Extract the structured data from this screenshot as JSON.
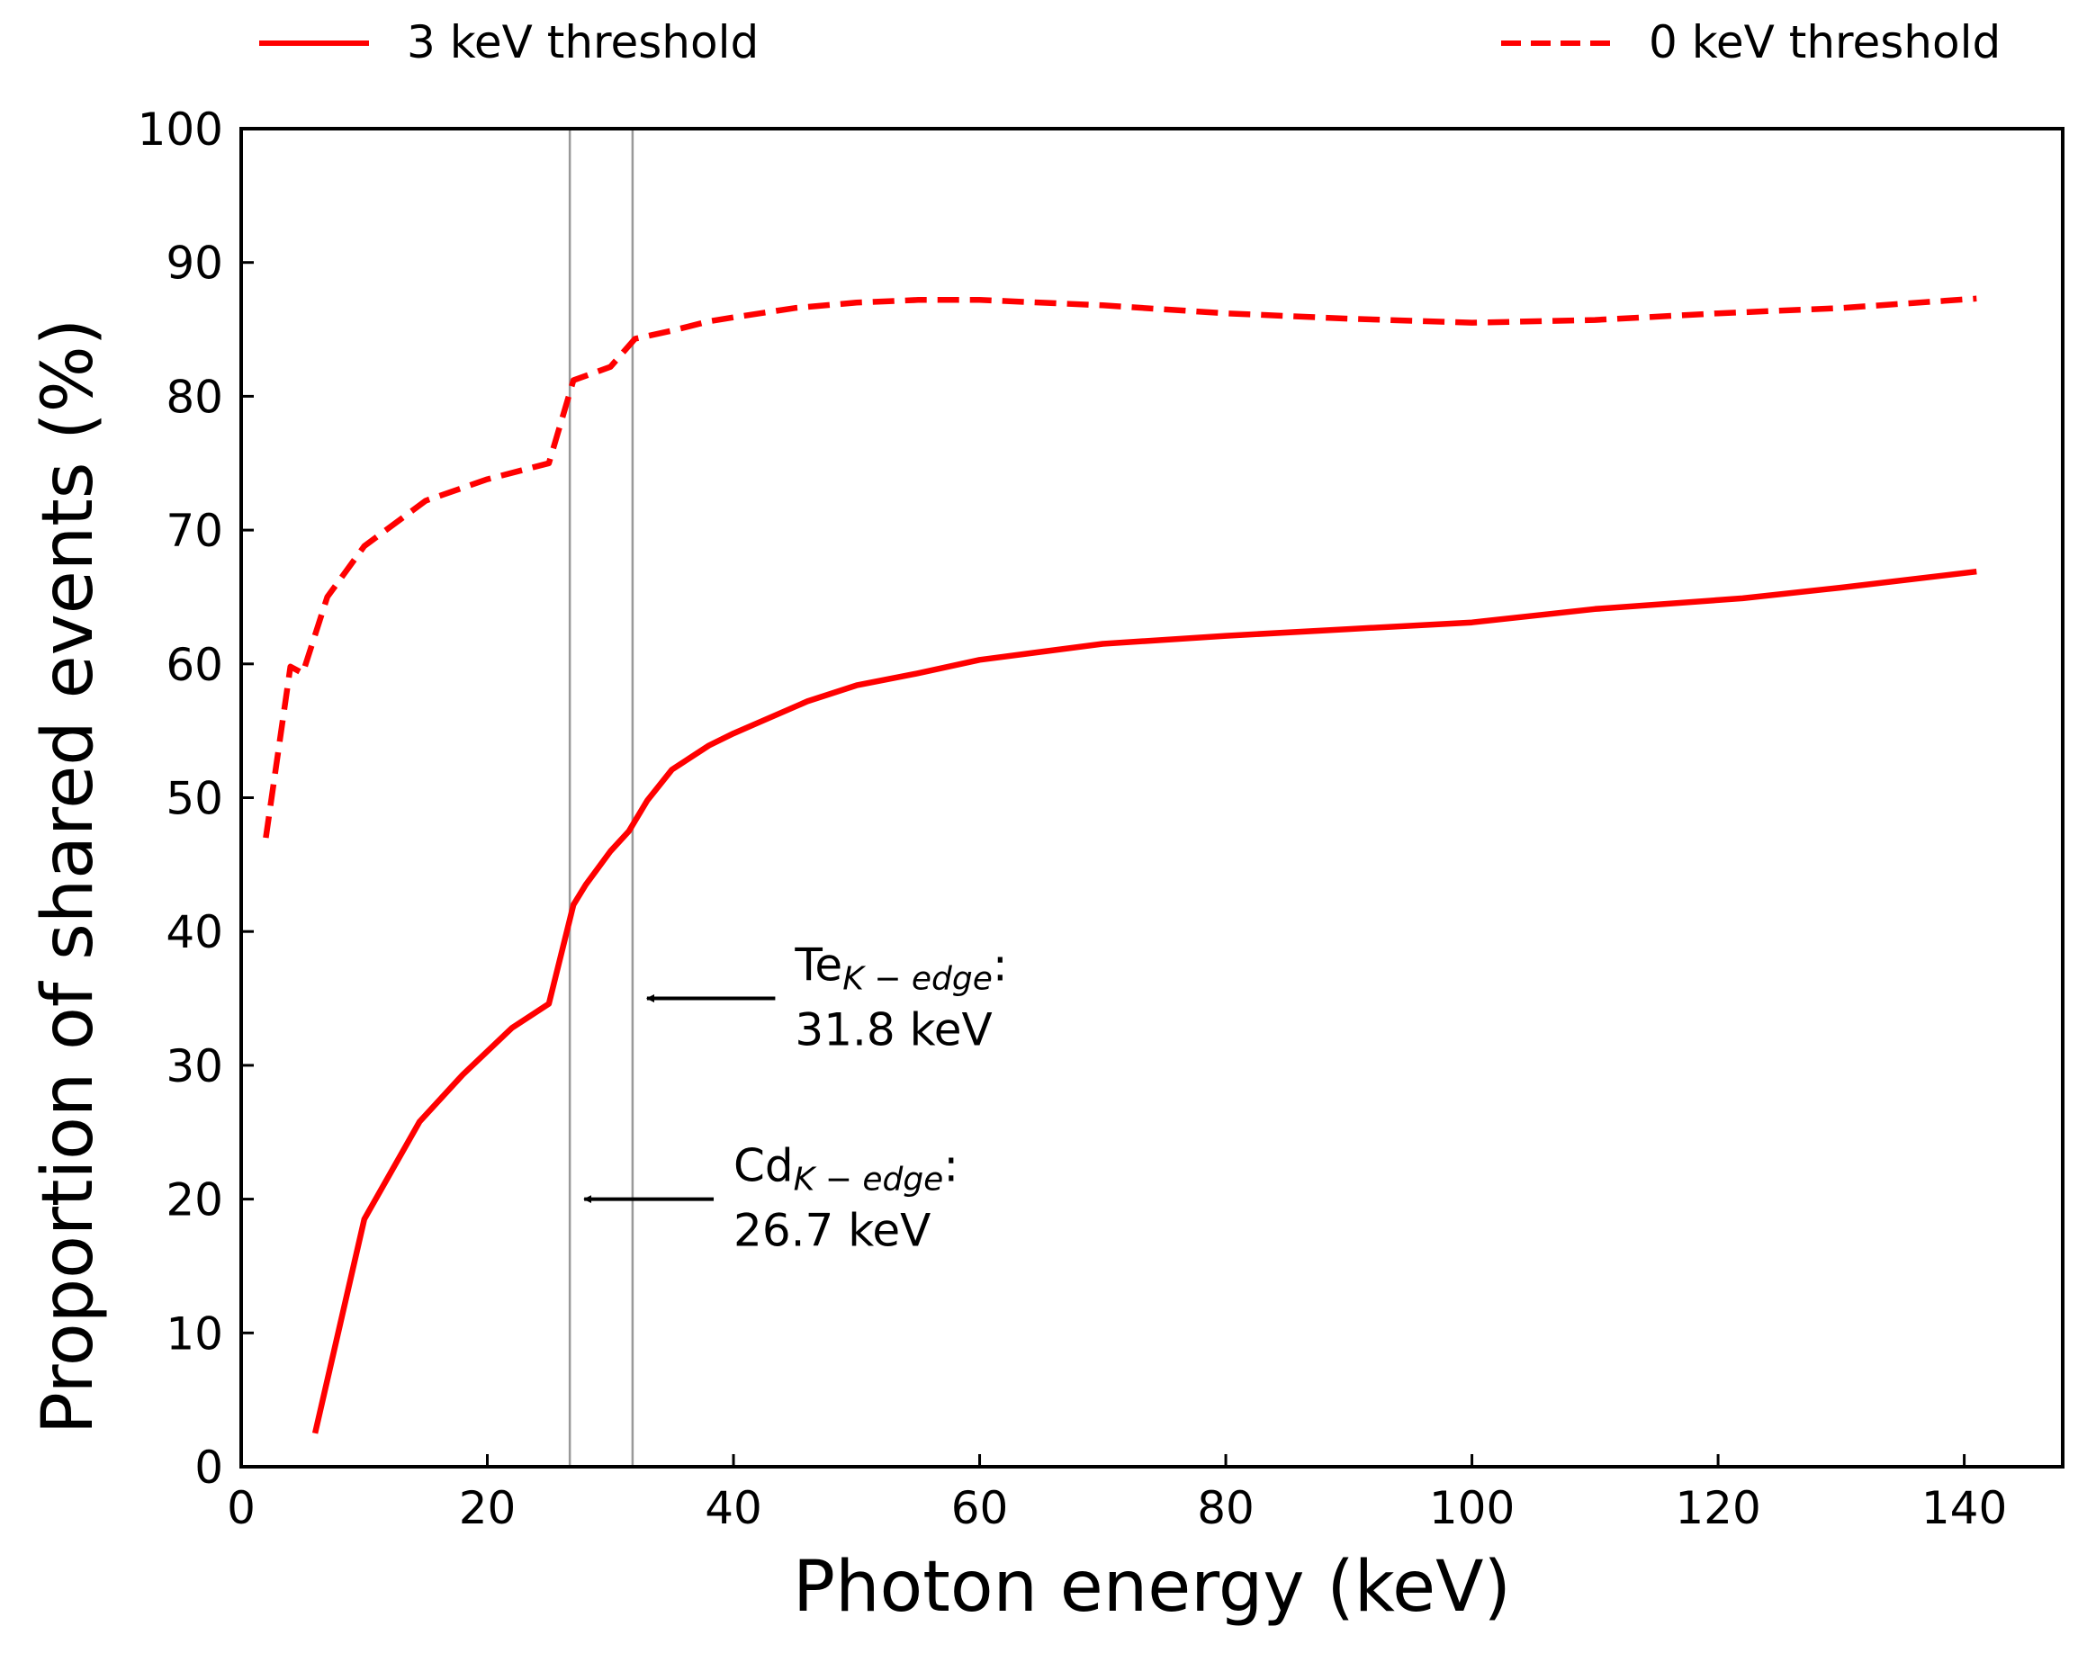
{
  "chart_data": {
    "type": "line",
    "title": "",
    "xlabel": "Photon energy (keV)",
    "ylabel": "Proportion of shared events (%)",
    "xlim": [
      0,
      148
    ],
    "ylim": [
      0,
      100
    ],
    "x_ticks": [
      0,
      20,
      40,
      60,
      80,
      100,
      120,
      140
    ],
    "y_ticks": [
      0,
      10,
      20,
      30,
      40,
      50,
      60,
      70,
      80,
      90,
      100
    ],
    "grid": false,
    "legend_placement": "top",
    "colors": {
      "series": "#ff0000",
      "vline": "#999999",
      "axis": "#000000"
    },
    "series": [
      {
        "name": "3 keV threshold",
        "style": "solid",
        "color": "#ff0000",
        "x": [
          6,
          10,
          14.5,
          18,
          22,
          25,
          27,
          28,
          30,
          31.5,
          33,
          35,
          38,
          40,
          42,
          46,
          50,
          55,
          60,
          70,
          80,
          90,
          100,
          110,
          122,
          130,
          141
        ],
        "y": [
          2.5,
          18.5,
          25.8,
          29.3,
          32.8,
          34.6,
          42,
          43.5,
          46,
          47.5,
          49.8,
          52.1,
          53.9,
          54.8,
          55.6,
          57.2,
          58.4,
          59.3,
          60.3,
          61.5,
          62.1,
          62.6,
          63.1,
          64.1,
          64.9,
          65.7,
          66.9
        ]
      },
      {
        "name": "0 keV threshold",
        "style": "dashed",
        "color": "#ff0000",
        "x": [
          2,
          4,
          5,
          7,
          10,
          15,
          20,
          25,
          27,
          30,
          32,
          35,
          38,
          40,
          45,
          50,
          55,
          60,
          70,
          80,
          90,
          100,
          110,
          120,
          130,
          141
        ],
        "y": [
          47,
          59.8,
          59.3,
          65,
          68.8,
          72.2,
          73.8,
          75,
          81.2,
          82.2,
          84.3,
          84.9,
          85.6,
          85.9,
          86.6,
          87,
          87.2,
          87.2,
          86.8,
          86.2,
          85.8,
          85.5,
          85.7,
          86.2,
          86.6,
          87.3
        ]
      }
    ],
    "vlines": [
      26.7,
      31.8
    ],
    "annotations": [
      {
        "name": "te-annotation",
        "base": "Te",
        "sub": "K − edge",
        "suffix": ":",
        "value": "31.8 keV",
        "arrow_to": [
          31.8,
          35
        ],
        "text_at": [
          45,
          35
        ]
      },
      {
        "name": "cd-annotation",
        "base": "Cd",
        "sub": "K − edge",
        "suffix": ":",
        "value": "26.7 keV",
        "arrow_to": [
          26.7,
          20
        ],
        "text_at": [
          40,
          20
        ]
      }
    ]
  }
}
